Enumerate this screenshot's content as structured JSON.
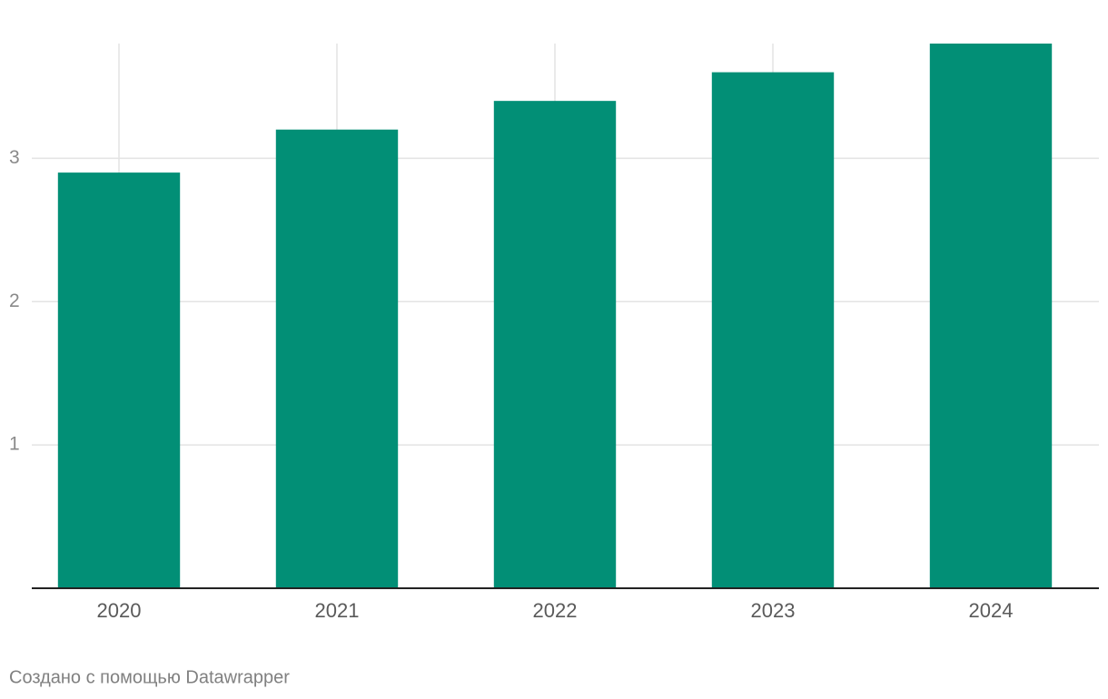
{
  "chart_data": {
    "type": "bar",
    "categories": [
      "2020",
      "2021",
      "2022",
      "2023",
      "2024"
    ],
    "values": [
      2.9,
      3.2,
      3.4,
      3.6,
      3.8
    ],
    "color": "#028f76",
    "ylim": [
      0,
      3.8
    ],
    "yticks": [
      1,
      2,
      3
    ],
    "grid": true,
    "credit": "Создано с помощью Datawrapper"
  }
}
